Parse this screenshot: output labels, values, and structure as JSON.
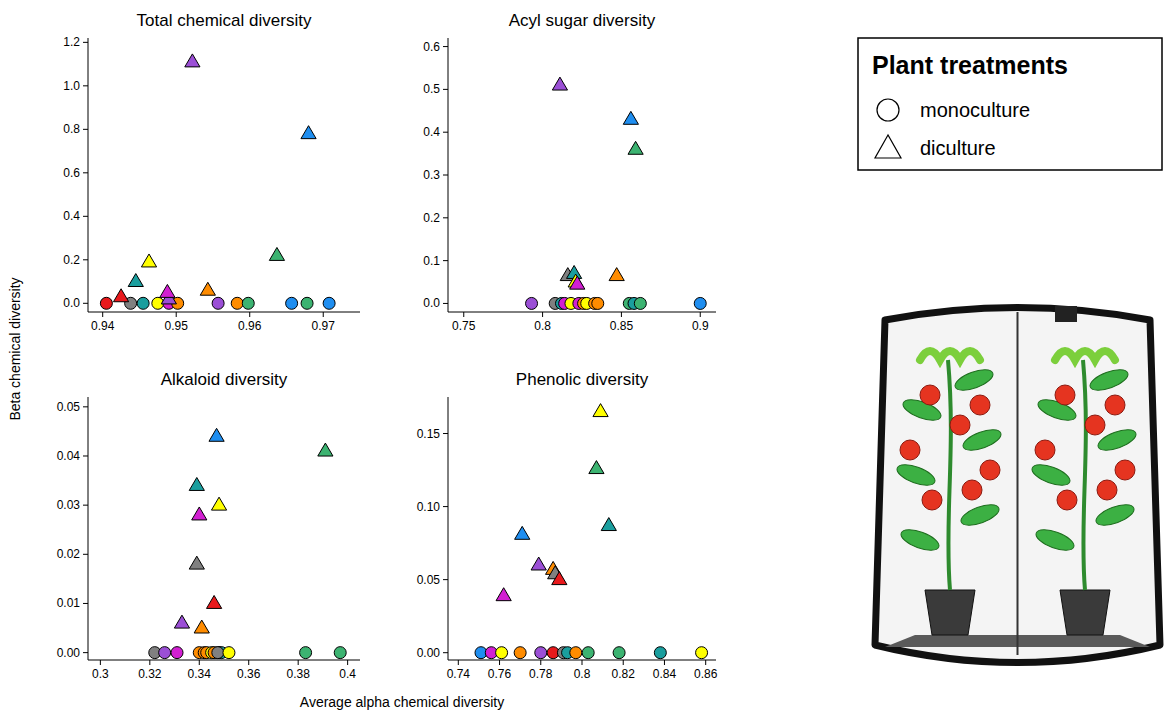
{
  "figure": {
    "x_label": "Average alpha chemical diversity",
    "y_label": "Beta chemical diversity",
    "legend_title": "Plant treatments"
  },
  "chart_data": [
    {
      "type": "scatter",
      "title": "Total chemical diversity",
      "legend": "right",
      "xlim": [
        0.938,
        0.975
      ],
      "xticks": [
        0.94,
        0.95,
        0.96,
        0.97
      ],
      "ylim": [
        -0.04,
        1.22
      ],
      "yticks": [
        {
          "value": 0,
          "label": "0.0"
        },
        0.2,
        0.4,
        0.6,
        0.8,
        {
          "value": 1,
          "label": "1.0"
        },
        1.2
      ],
      "series": [
        {
          "name": "monoculture",
          "marker": "circle",
          "x": [
            0.9405,
            0.9438,
            0.9455,
            0.9475,
            0.949,
            0.9502,
            0.9557,
            0.9583,
            0.9598,
            0.9657,
            0.9678,
            0.9708
          ],
          "values": [
            0,
            0,
            0,
            0,
            0,
            0,
            0,
            0,
            0,
            0,
            0,
            0
          ],
          "colors": [
            "#e8191c",
            "#808080",
            "#1a9e9e",
            "#ffff00",
            "#d21fd2",
            "#ff8c00",
            "#9b4fd6",
            "#ff8c00",
            "#3cb371",
            "#1f8ef0",
            "#3cb371",
            "#1f8ef0"
          ]
        },
        {
          "name": "diculture",
          "marker": "triangle",
          "x": [
            0.9425,
            0.9445,
            0.9463,
            0.949,
            0.9488,
            0.9522,
            0.9543,
            0.9637,
            0.968
          ],
          "values": [
            0.03,
            0.1,
            0.19,
            0.02,
            0.05,
            1.11,
            0.06,
            0.22,
            0.78
          ],
          "colors": [
            "#e8191c",
            "#1a9e9e",
            "#ffff00",
            "#9b4fd6",
            "#d21fd2",
            "#9b4fd6",
            "#ff8c00",
            "#3cb371",
            "#1f8ef0"
          ]
        }
      ]
    },
    {
      "type": "scatter",
      "title": "Acyl sugar diversity",
      "xlim": [
        0.74,
        0.91
      ],
      "xticks": [
        0.75,
        0.8,
        0.85,
        0.9
      ],
      "ylim": [
        -0.02,
        0.62
      ],
      "yticks": [
        {
          "value": 0,
          "label": "0.0"
        },
        0.1,
        0.2,
        0.3,
        0.4,
        0.5,
        0.6
      ],
      "series": [
        {
          "name": "monoculture",
          "marker": "circle",
          "x": [
            0.793,
            0.808,
            0.812,
            0.814,
            0.818,
            0.823,
            0.826,
            0.828,
            0.833,
            0.835,
            0.855,
            0.858,
            0.862,
            0.9
          ],
          "values": [
            0,
            0,
            0,
            0,
            0,
            0,
            0,
            0,
            0,
            0,
            0,
            0,
            0,
            0
          ],
          "colors": [
            "#9b4fd6",
            "#808080",
            "#1a9e9e",
            "#d21fd2",
            "#ffff00",
            "#d21fd2",
            "#ff8c00",
            "#ffff00",
            "#ff8c00",
            "#ff8c00",
            "#3cb371",
            "#1a9e9e",
            "#3cb371",
            "#1f8ef0"
          ]
        },
        {
          "name": "diculture",
          "marker": "triangle",
          "x": [
            0.811,
            0.856,
            0.859,
            0.816,
            0.82,
            0.821,
            0.822,
            0.847
          ],
          "values": [
            0.51,
            0.43,
            0.36,
            0.065,
            0.07,
            0.05,
            0.045,
            0.065
          ],
          "colors": [
            "#9b4fd6",
            "#1f8ef0",
            "#3cb371",
            "#808080",
            "#1a9e9e",
            "#ffff00",
            "#d21fd2",
            "#ff8c00"
          ]
        }
      ]
    },
    {
      "type": "scatter",
      "title": "Alkaloid diversity",
      "xlim": [
        0.295,
        0.405
      ],
      "xticks": [
        0.3,
        0.32,
        0.34,
        0.36,
        0.38,
        0.4
      ],
      "ylim": [
        -0.0015,
        0.052
      ],
      "yticks": [
        {
          "value": 0,
          "label": "0.00"
        },
        0.01,
        0.02,
        0.03,
        0.04,
        0.05
      ],
      "series": [
        {
          "name": "monoculture",
          "marker": "circle",
          "x": [
            0.322,
            0.326,
            0.331,
            0.34,
            0.342,
            0.343,
            0.345,
            0.346,
            0.348,
            0.349,
            0.3475,
            0.352,
            0.383,
            0.397
          ],
          "values": [
            0,
            0,
            0,
            0,
            0,
            0,
            0,
            0,
            0,
            0,
            0,
            0,
            0,
            0
          ],
          "colors": [
            "#808080",
            "#9b4fd6",
            "#d21fd2",
            "#ff8c00",
            "#ff8c00",
            "#ff8c00",
            "#ffff00",
            "#ff8c00",
            "#1f8ef0",
            "#1a9e9e",
            "#808080",
            "#ffff00",
            "#3cb371",
            "#3cb371"
          ]
        },
        {
          "name": "diculture",
          "marker": "triangle",
          "x": [
            0.347,
            0.391,
            0.339,
            0.348,
            0.34,
            0.339,
            0.346,
            0.333,
            0.341
          ],
          "values": [
            0.044,
            0.041,
            0.034,
            0.03,
            0.028,
            0.018,
            0.01,
            0.006,
            0.005
          ],
          "colors": [
            "#1f8ef0",
            "#3cb371",
            "#1a9e9e",
            "#ffff00",
            "#d21fd2",
            "#808080",
            "#e8191c",
            "#9b4fd6",
            "#ff8c00"
          ]
        }
      ]
    },
    {
      "type": "scatter",
      "title": "Phenolic diversity",
      "xlim": [
        0.735,
        0.865
      ],
      "xticks": [
        0.74,
        0.76,
        0.78,
        0.8,
        0.82,
        0.84,
        0.86
      ],
      "ylim": [
        -0.005,
        0.175
      ],
      "yticks": [
        {
          "value": 0,
          "label": "0.00"
        },
        0.05,
        {
          "value": 0.1,
          "label": "0.10"
        },
        0.15
      ],
      "series": [
        {
          "name": "monoculture",
          "marker": "circle",
          "x": [
            0.751,
            0.756,
            0.761,
            0.77,
            0.78,
            0.786,
            0.791,
            0.793,
            0.797,
            0.803,
            0.818,
            0.838,
            0.858
          ],
          "values": [
            0,
            0,
            0,
            0,
            0,
            0,
            0,
            0,
            0,
            0,
            0,
            0,
            0
          ],
          "colors": [
            "#1f8ef0",
            "#d21fd2",
            "#ffff00",
            "#ff8c00",
            "#9b4fd6",
            "#e8191c",
            "#808080",
            "#1a9e9e",
            "#ff8c00",
            "#3cb371",
            "#3cb371",
            "#1a9e9e",
            "#ffff00"
          ]
        },
        {
          "name": "diculture",
          "marker": "triangle",
          "x": [
            0.809,
            0.807,
            0.813,
            0.771,
            0.779,
            0.786,
            0.787,
            0.789,
            0.762
          ],
          "values": [
            0.165,
            0.126,
            0.087,
            0.081,
            0.06,
            0.057,
            0.054,
            0.05,
            0.039
          ],
          "colors": [
            "#ffff00",
            "#3cb371",
            "#1a9e9e",
            "#1f8ef0",
            "#9b4fd6",
            "#ff8c00",
            "#808080",
            "#e8191c",
            "#d21fd2"
          ]
        }
      ]
    }
  ]
}
